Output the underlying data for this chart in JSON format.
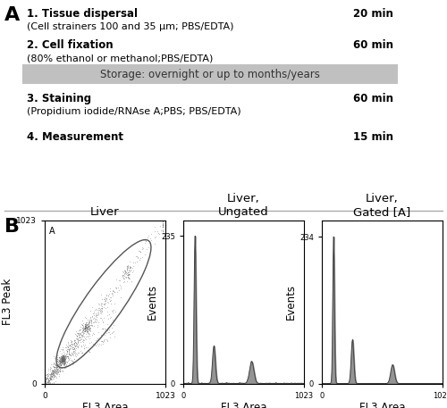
{
  "panel_A_label": "A",
  "panel_B_label": "B",
  "steps": [
    {
      "bold_text": "1. Tissue dispersal",
      "detail_text": "(Cell strainers 100 and 35 μm; PBS/EDTA)",
      "time": "20 min"
    },
    {
      "bold_text": "2. Cell fixation",
      "detail_text": "(80% ethanol or methanol;PBS/EDTA)",
      "time": "60 min"
    },
    {
      "bold_text": "3. Staining",
      "detail_text": "(Propidium iodide/RNAse A;PBS; PBS/EDTA)",
      "time": "60 min"
    },
    {
      "bold_text": "4. Measurement",
      "detail_text": "",
      "time": "15 min"
    }
  ],
  "storage_text": "Storage: overnight or up to months/years",
  "storage_bg": "#c0c0c0",
  "scatter_title": "Liver",
  "hist1_title": "Liver,\nUngated",
  "hist2_title": "Liver,\nGated [A]",
  "scatter_xlabel": "FL3 Area",
  "scatter_ylabel": "FL3 Peak",
  "hist_xlabel": "FL3 Area",
  "hist_ylabel": "Events",
  "hist1_ytick_max": 235,
  "hist2_ytick_max": 234,
  "bg_color": "#ffffff",
  "text_color": "#000000",
  "scatter_dot_color": "#606060",
  "hist_fill_color": "#888888",
  "hist_edge_color": "#444444",
  "gate_color": "#555555",
  "divider_color": "#aaaaaa"
}
